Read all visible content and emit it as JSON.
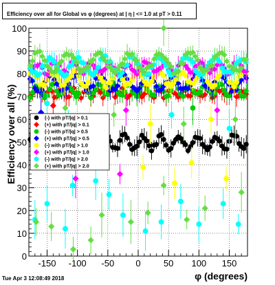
{
  "chart_data": {
    "type": "scatter",
    "title": "Efficiency over all for Global vs φ (degrees) at | η | <= 1.0 at pT > 0.11",
    "xlabel": "φ (degrees)",
    "ylabel": "Efficiency over all (%)",
    "xlim": [
      -180,
      180
    ],
    "ylim": [
      0,
      100
    ],
    "x_ticks": [
      "-150",
      "-100",
      "-50",
      "0",
      "50",
      "100",
      "150"
    ],
    "y_ticks": [
      "0",
      "10",
      "20",
      "30",
      "40",
      "50",
      "60",
      "70",
      "80",
      "90",
      "100"
    ],
    "grid": true,
    "legend_position": "middle-left",
    "series": [
      {
        "name": "(-) with pT/|q| > 0.1",
        "color": "#000000",
        "marker": "circle",
        "pattern": {
          "type": "wave",
          "base": 50,
          "amp": 3,
          "period": 30
        }
      },
      {
        "name": "(+) with pT/|q| > 0.1",
        "color": "#ff0000",
        "marker": "diamond",
        "pattern": {
          "type": "wave",
          "base": 71.5,
          "amp": 1.5,
          "period": 20
        }
      },
      {
        "name": "(-) with pT/|q| > 0.5",
        "color": "#00cc00",
        "marker": "circle",
        "pattern": {
          "type": "wave",
          "base": 73,
          "amp": 2.5,
          "period": 25
        }
      },
      {
        "name": "(+) with pT/|q| > 0.5",
        "color": "#0000ff",
        "marker": "diamond",
        "pattern": {
          "type": "wave",
          "base": 76,
          "amp": 3,
          "period": 40
        }
      },
      {
        "name": "(-) with pT/|q| > 1.0",
        "color": "#ffff00",
        "marker": "circle",
        "pattern": {
          "type": "wave",
          "base": 78,
          "amp": 3,
          "period": 35
        }
      },
      {
        "name": "(+) with pT/|q| > 1.0",
        "color": "#ff00ff",
        "marker": "diamond",
        "pattern": {
          "type": "wave",
          "base": 82.5,
          "amp": 2,
          "period": 30
        }
      },
      {
        "name": "(-) with pT/|q| > 2.0",
        "color": "#00ffff",
        "marker": "circle",
        "pattern": {
          "type": "wave",
          "base": 83.5,
          "amp": 3.5,
          "period": 45
        }
      },
      {
        "name": "(+) with pT/|q| > 2.0",
        "color": "#66dd44",
        "marker": "diamond",
        "pattern": {
          "type": "wave",
          "base": 85,
          "amp": 4,
          "period": 50
        }
      }
    ],
    "scattered_points": [
      {
        "series": 6,
        "x": -170,
        "y": 16
      },
      {
        "series": 7,
        "x": -168,
        "y": 15
      },
      {
        "series": 6,
        "x": -150,
        "y": 23
      },
      {
        "series": 7,
        "x": -143,
        "y": 13
      },
      {
        "series": 6,
        "x": -120,
        "y": 12
      },
      {
        "series": 7,
        "x": -107,
        "y": 3
      },
      {
        "series": 6,
        "x": -108,
        "y": 31
      },
      {
        "series": 5,
        "x": -103,
        "y": 34
      },
      {
        "series": 6,
        "x": -90,
        "y": 48
      },
      {
        "series": 7,
        "x": -78,
        "y": 7
      },
      {
        "series": 6,
        "x": -70,
        "y": 33
      },
      {
        "series": 7,
        "x": -60,
        "y": 18
      },
      {
        "series": 6,
        "x": -48,
        "y": 27
      },
      {
        "series": 5,
        "x": -30,
        "y": 36
      },
      {
        "series": 6,
        "x": -25,
        "y": 18
      },
      {
        "series": 7,
        "x": -12,
        "y": 15
      },
      {
        "series": 4,
        "x": 8,
        "y": 39
      },
      {
        "series": 6,
        "x": 12,
        "y": 11
      },
      {
        "series": 7,
        "x": 16,
        "y": 19
      },
      {
        "series": 6,
        "x": 38,
        "y": 15
      },
      {
        "series": 7,
        "x": 42,
        "y": 31
      },
      {
        "series": 4,
        "x": 60,
        "y": 32
      },
      {
        "series": 6,
        "x": 70,
        "y": 24
      },
      {
        "series": 7,
        "x": 80,
        "y": 16
      },
      {
        "series": 4,
        "x": 88,
        "y": 41
      },
      {
        "series": 6,
        "x": 100,
        "y": 14
      },
      {
        "series": 7,
        "x": 110,
        "y": 21
      },
      {
        "series": 6,
        "x": 140,
        "y": 23
      },
      {
        "series": 4,
        "x": 145,
        "y": 34
      },
      {
        "series": 6,
        "x": 165,
        "y": 14
      },
      {
        "series": 7,
        "x": 170,
        "y": 28
      },
      {
        "series": 7,
        "x": 42,
        "y": 100
      },
      {
        "series": 7,
        "x": -120,
        "y": 65
      },
      {
        "series": 6,
        "x": -115,
        "y": 60
      },
      {
        "series": 4,
        "x": -80,
        "y": 59
      },
      {
        "series": 7,
        "x": -40,
        "y": 62
      },
      {
        "series": 5,
        "x": -20,
        "y": 64
      },
      {
        "series": 4,
        "x": 20,
        "y": 58
      },
      {
        "series": 6,
        "x": 55,
        "y": 62
      },
      {
        "series": 7,
        "x": 75,
        "y": 58
      },
      {
        "series": 4,
        "x": 120,
        "y": 60
      },
      {
        "series": 6,
        "x": 150,
        "y": 56
      },
      {
        "series": 7,
        "x": 160,
        "y": 60
      },
      {
        "series": 5,
        "x": 130,
        "y": 64
      },
      {
        "series": 3,
        "x": -160,
        "y": 63
      },
      {
        "series": 1,
        "x": -140,
        "y": 66
      },
      {
        "series": 2,
        "x": 90,
        "y": 65
      },
      {
        "series": 6,
        "x": -150,
        "y": 67
      }
    ]
  },
  "timestamp": "Tue Apr  3 12:08:49 2018"
}
